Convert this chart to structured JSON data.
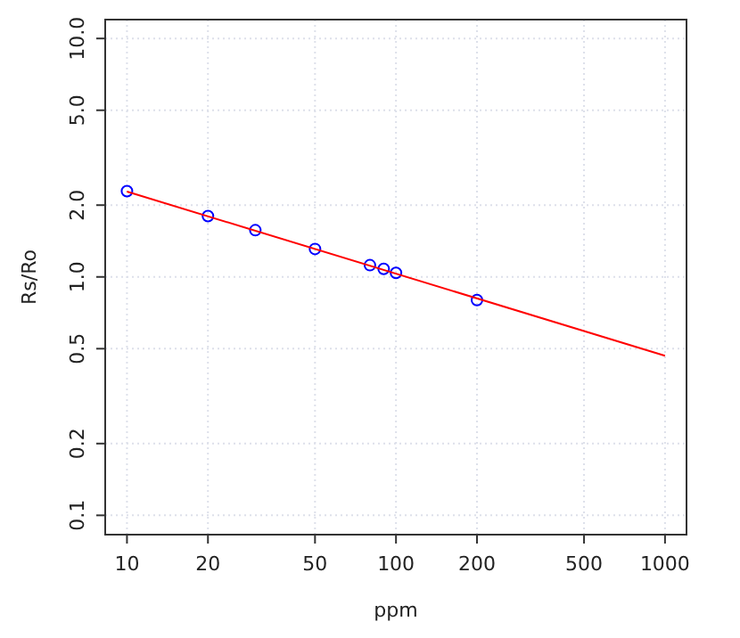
{
  "chart_data": {
    "type": "scatter",
    "xlabel": "ppm",
    "ylabel": "Rs/Ro",
    "log": "xy",
    "grid": true,
    "xlim": [
      8.3,
      1202
    ],
    "xticks": [
      10,
      20,
      50,
      100,
      200,
      500,
      1000
    ],
    "ylim": [
      0.083,
      12
    ],
    "yticks": [
      {
        "value": 0.1,
        "label": "0.1"
      },
      {
        "value": 0.2,
        "label": "0.2"
      },
      {
        "value": 0.5,
        "label": "0.5"
      },
      {
        "value": 1,
        "label": "1.0"
      },
      {
        "value": 2,
        "label": "2.0"
      },
      {
        "value": 5,
        "label": "5.0"
      },
      {
        "value": 10,
        "label": "10.0"
      }
    ],
    "series": [
      {
        "color": "#0000ff",
        "marker": "circle",
        "x": [
          10,
          20,
          30,
          50,
          80,
          90,
          100,
          200
        ],
        "values": [
          2.29,
          1.8,
          1.57,
          1.31,
          1.12,
          1.08,
          1.04,
          0.8
        ]
      },
      {
        "type": "line",
        "color": "#ff0000",
        "marker": "none",
        "line_style": "solid",
        "x": [
          10,
          1000
        ],
        "values": [
          2.28,
          0.467
        ]
      }
    ]
  }
}
